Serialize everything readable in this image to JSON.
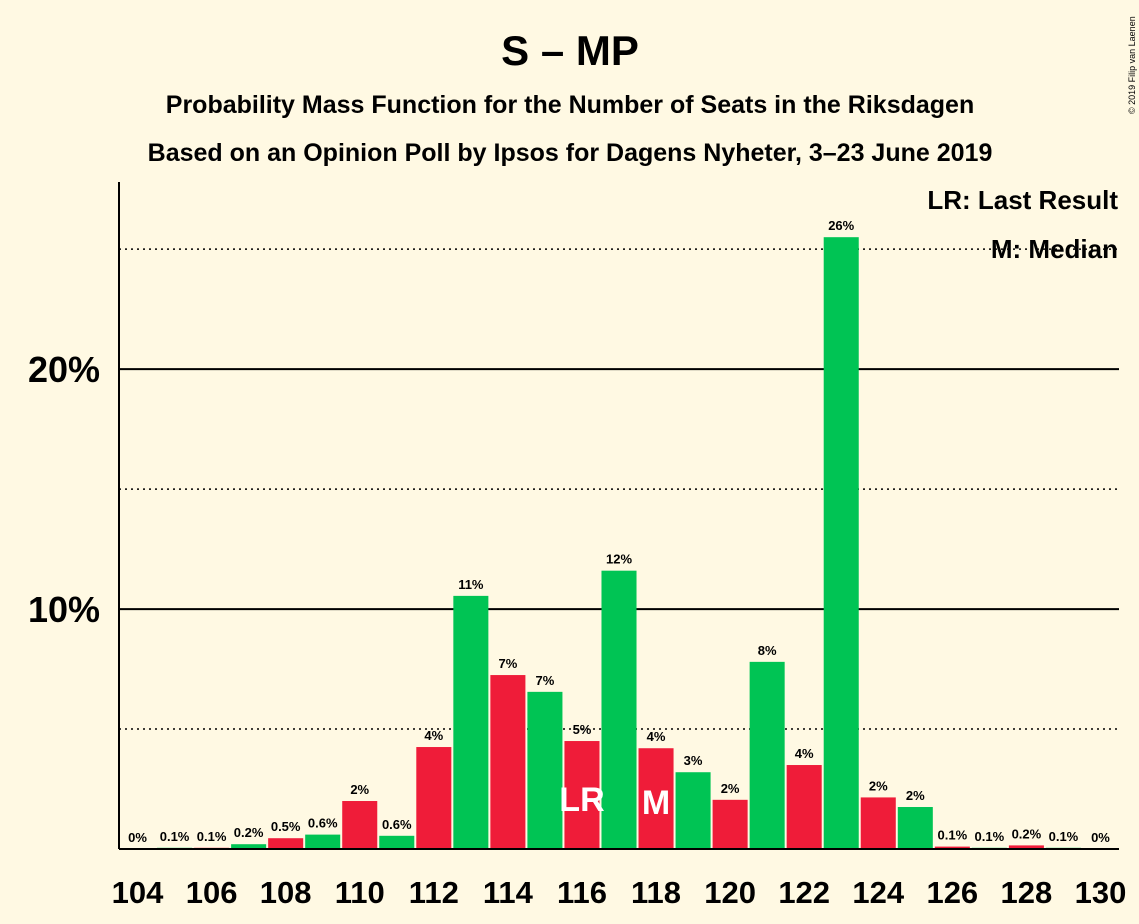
{
  "title": "S – MP",
  "subtitle1": "Probability Mass Function for the Number of Seats in the Riksdagen",
  "subtitle2": "Based on an Opinion Poll by Ipsos for Dagens Nyheter, 3–23 June 2019",
  "copyright": "© 2019 Filip van Laenen",
  "legend": {
    "last_result": "LR: Last Result",
    "median": "M: Median"
  },
  "markers": {
    "last_result": "LR",
    "median": "M"
  },
  "colors": {
    "background": "#FFF9E3",
    "green": "#00C454",
    "red": "#EF1C39",
    "axis": "#000000"
  },
  "chart_data": {
    "type": "bar",
    "x": [
      104,
      105,
      106,
      107,
      108,
      109,
      110,
      111,
      112,
      113,
      114,
      115,
      116,
      117,
      118,
      119,
      120,
      121,
      122,
      123,
      124,
      125,
      126,
      127,
      128,
      129,
      130
    ],
    "values": [
      0,
      0.05,
      0.05,
      0.2,
      0.45,
      0.6,
      2.0,
      0.55,
      4.25,
      10.55,
      7.25,
      6.55,
      4.5,
      11.6,
      4.2,
      3.2,
      2.05,
      7.8,
      3.5,
      25.5,
      2.15,
      1.75,
      0.1,
      0.05,
      0.15,
      0.05,
      0
    ],
    "labels": [
      "0%",
      "0.1%",
      "0.1%",
      "0.2%",
      "0.5%",
      "0.6%",
      "2%",
      "0.6%",
      "4%",
      "11%",
      "7%",
      "7%",
      "5%",
      "12%",
      "4%",
      "3%",
      "2%",
      "8%",
      "4%",
      "26%",
      "2%",
      "2%",
      "0.1%",
      "0.1%",
      "0.2%",
      "0.1%",
      "0%"
    ],
    "x_tick_labels": [
      "104",
      "106",
      "108",
      "110",
      "112",
      "114",
      "116",
      "118",
      "120",
      "122",
      "124",
      "126",
      "128",
      "130"
    ],
    "y_tick_labels": [
      "10%",
      "20%"
    ],
    "ylim": [
      0,
      27.8
    ],
    "solid_gridlines": [
      10,
      20
    ],
    "dotted_gridlines": [
      5,
      15,
      25
    ],
    "last_result": 116,
    "median": 118,
    "xlabel": "",
    "ylabel": ""
  }
}
